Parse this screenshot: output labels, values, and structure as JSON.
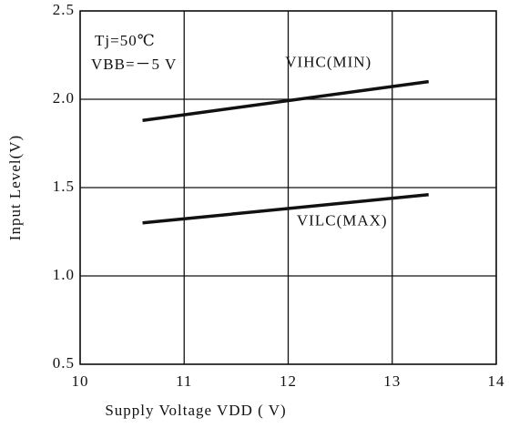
{
  "chart_data": {
    "type": "line",
    "xlabel": "Supply Voltage VDD ( V)",
    "ylabel": "Input Level(V)",
    "annotations": [
      "Tj=50℃",
      "VBB=－5 V"
    ],
    "series": [
      {
        "name": "VIHC(MIN)",
        "color": "#111111",
        "x": [
          10.6,
          13.35
        ],
        "values": [
          1.88,
          2.1
        ]
      },
      {
        "name": "VILC(MAX)",
        "color": "#111111",
        "x": [
          10.6,
          13.35
        ],
        "values": [
          1.3,
          1.46
        ]
      }
    ],
    "xlim": [
      10,
      14
    ],
    "xticks": [
      10,
      11,
      12,
      13,
      14
    ],
    "ylim": [
      0.5,
      2.5
    ],
    "yticks": [
      0.5,
      {
        "value": 1,
        "label": "1.0"
      },
      1.5,
      {
        "value": 2,
        "label": "2.0"
      },
      2.5
    ],
    "grid": true
  }
}
